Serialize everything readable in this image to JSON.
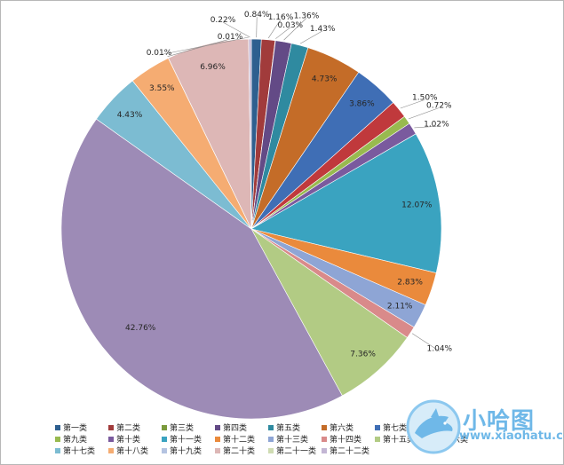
{
  "chart_data": {
    "type": "pie",
    "title": "",
    "legend_position": "bottom",
    "slices": [
      {
        "name": "第一类",
        "value": 0.84,
        "label": "0.84%",
        "color": "#2e5f8f"
      },
      {
        "name": "第二类",
        "value": 1.16,
        "label": "1.16%",
        "color": "#a13b3b"
      },
      {
        "name": "第三类",
        "value": 0.03,
        "label": "0.03%",
        "color": "#7b9a3c"
      },
      {
        "name": "第四类",
        "value": 1.36,
        "label": "1.36%",
        "color": "#634a86"
      },
      {
        "name": "第五类",
        "value": 1.43,
        "label": "1.43%",
        "color": "#2f8aa0"
      },
      {
        "name": "第六类",
        "value": 4.73,
        "label": "4.73%",
        "color": "#c46c28"
      },
      {
        "name": "第七类",
        "value": 3.86,
        "label": "3.86%",
        "color": "#3f6eb5"
      },
      {
        "name": "第八类",
        "value": 1.5,
        "label": "1.50%",
        "color": "#c0393c"
      },
      {
        "name": "第九类",
        "value": 0.72,
        "label": "0.72%",
        "color": "#98ba4f"
      },
      {
        "name": "第十类",
        "value": 1.02,
        "label": "1.02%",
        "color": "#7a5a9e"
      },
      {
        "name": "第十一类",
        "value": 12.07,
        "label": "12.07%",
        "color": "#3aa3c0"
      },
      {
        "name": "第十二类",
        "value": 2.83,
        "label": "2.83%",
        "color": "#ea8a3c"
      },
      {
        "name": "第十三类",
        "value": 2.11,
        "label": "2.11%",
        "color": "#8ea5d5"
      },
      {
        "name": "第十四类",
        "value": 1.04,
        "label": "1.04%",
        "color": "#d98a8a"
      },
      {
        "name": "第十五类",
        "value": 7.36,
        "label": "7.36%",
        "color": "#b2cb84"
      },
      {
        "name": "第十六类",
        "value": 42.76,
        "label": "42.76%",
        "color": "#9d8bb6"
      },
      {
        "name": "第十七类",
        "value": 4.43,
        "label": "4.43%",
        "color": "#7cbcd2"
      },
      {
        "name": "第十八类",
        "value": 3.55,
        "label": "3.55%",
        "color": "#f5ac72"
      },
      {
        "name": "第十九类",
        "value": 0.01,
        "label": "0.01%",
        "color": "#b4c3e1"
      },
      {
        "name": "第二十类",
        "value": 6.96,
        "label": "6.96%",
        "color": "#ddb7b6"
      },
      {
        "name": "第二十一类",
        "value": 0.01,
        "label": "0.01%",
        "color": "#cfdcb3"
      },
      {
        "name": "第二十二类",
        "value": 0.22,
        "label": "0.22%",
        "color": "#c3b6d4"
      }
    ]
  },
  "watermark": {
    "title": "小哈图",
    "url": "www.xiaohatu.com"
  }
}
